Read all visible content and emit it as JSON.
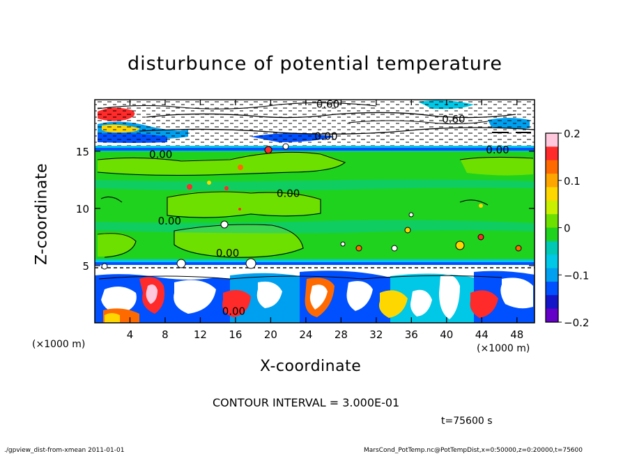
{
  "chart_data": {
    "type": "heatmap",
    "title": "disturbunce of potential temperature",
    "xlabel": "X-coordinate",
    "ylabel": "Z-coordinate",
    "x_unit_left": "(×1000 m)",
    "x_unit_right": "(×1000 m)",
    "xlim": [
      0,
      50
    ],
    "ylim": [
      0,
      19.5
    ],
    "x_ticks": [
      4,
      8,
      12,
      16,
      20,
      24,
      28,
      32,
      36,
      40,
      44,
      48
    ],
    "x_tick_labels": [
      "4",
      "8",
      "12",
      "16",
      "20",
      "24",
      "28",
      "32",
      "36",
      "40",
      "44",
      "48"
    ],
    "y_ticks": [
      5,
      10,
      15
    ],
    "y_tick_labels": [
      "5",
      "10",
      "15"
    ],
    "colorbar": {
      "range": [
        -0.2,
        0.2
      ],
      "ticks": [
        0.2,
        0.1,
        0,
        -0.1,
        -0.2
      ],
      "tick_labels": [
        "0.2",
        "0.1",
        "0",
        "−0.1",
        "−0.2"
      ],
      "colors": [
        "#ffc8dc",
        "#ff2a2a",
        "#ff6a00",
        "#ffa500",
        "#ffd700",
        "#c8f000",
        "#6ee000",
        "#1ed21e",
        "#00c8b4",
        "#00c8e6",
        "#00a0f0",
        "#0050ff",
        "#1414c8",
        "#6400c8"
      ]
    },
    "contour_labels": [
      {
        "text": "0.60",
        "x": 26.5,
        "y": 18.8
      },
      {
        "text": "0.60",
        "x": 40.8,
        "y": 17.5
      },
      {
        "text": "0.00",
        "x": 26.3,
        "y": 16.0
      },
      {
        "text": "0.00",
        "x": 7.5,
        "y": 14.4
      },
      {
        "text": "0.00",
        "x": 45.8,
        "y": 14.8
      },
      {
        "text": "0.00",
        "x": 22.0,
        "y": 11.0
      },
      {
        "text": "0.00",
        "x": 8.5,
        "y": 8.6
      },
      {
        "text": "0.00",
        "x": 15.1,
        "y": 5.8
      },
      {
        "text": "0.00",
        "x": 15.8,
        "y": 0.7
      }
    ],
    "layers": [
      {
        "name": "top",
        "z": [
          16,
          19.5
        ]
      },
      {
        "name": "middle",
        "z": [
          5.5,
          16
        ]
      },
      {
        "name": "bottom",
        "z": [
          0,
          5.5
        ]
      }
    ]
  },
  "contour_interval": "CONTOUR INTERVAL = 3.000E-01",
  "time_label": "t=75600 s",
  "footer_left": "./gpview_dist-from-xmean   2011-01-01",
  "footer_right": "MarsCond_PotTemp.nc@PotTempDist,x=0:50000,z=0:20000,t=75600"
}
